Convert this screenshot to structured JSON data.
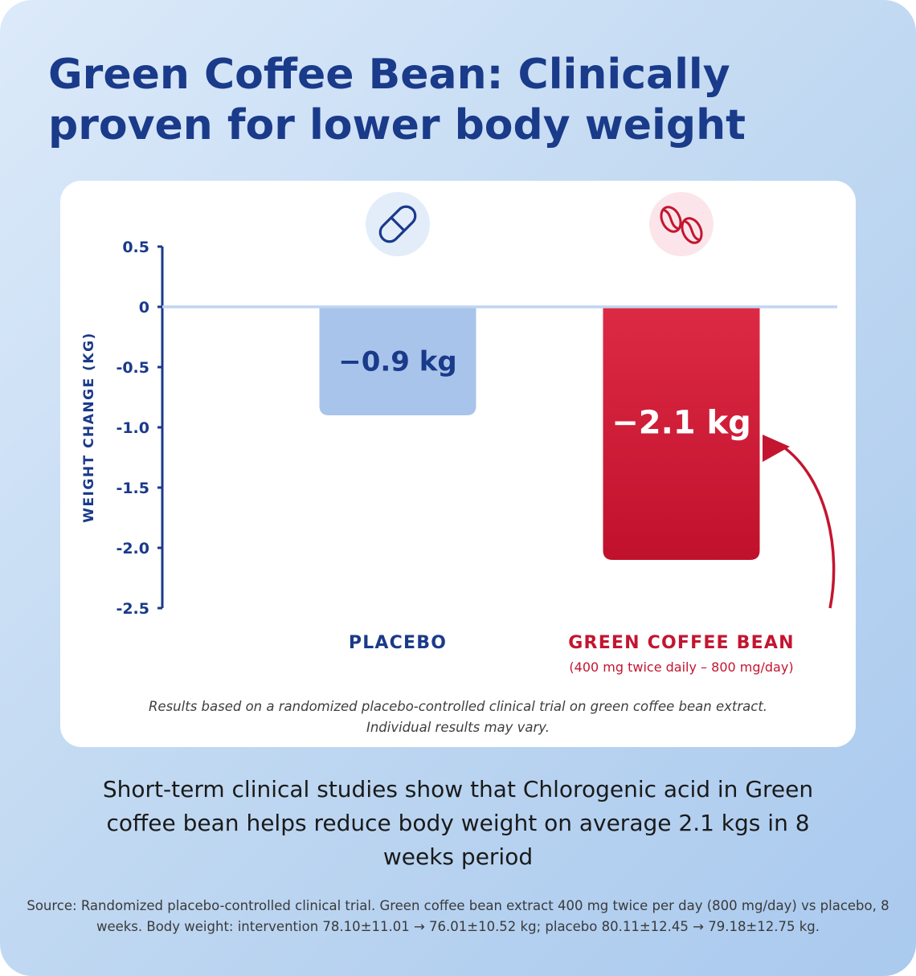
{
  "title": "Green Coffee Bean: Clinically proven for lower body weight",
  "colors": {
    "title": "#1a3a8a",
    "placebo_bar": "#a8c4ea",
    "placebo_icon_bg": "#e3edf9",
    "gcb_bar_top": "#dd2a44",
    "gcb_bar_bottom": "#c0112c",
    "gcb_icon_bg": "#fbe5ea",
    "zero_line": "#c0d5f0",
    "arrow": "#c41530"
  },
  "icons": {
    "placebo": "pill-icon",
    "gcb": "coffee-beans-icon"
  },
  "chart_data": {
    "type": "bar",
    "categories": [
      "PLACEBO",
      "GREEN COFFEE BEAN"
    ],
    "category_subtitles": [
      "",
      "(400 mg twice daily – 800 mg/day)"
    ],
    "values": [
      -0.9,
      -2.1
    ],
    "data_labels": [
      "−0.9 kg",
      "−2.1 kg"
    ],
    "ylabel": "WEIGHT CHANGE (KG)",
    "ylim": [
      -2.5,
      0.5
    ],
    "yticks": [
      0.5,
      0,
      -0.5,
      -1.0,
      -1.5,
      -2.0,
      -2.5
    ],
    "ytick_labels": [
      "0.5",
      "0",
      "-0.5",
      "-1.0",
      "-1.5",
      "-2.0",
      "-2.5"
    ],
    "grid": false,
    "annotation": "curved arrow pointing to Green Coffee Bean bar"
  },
  "footnote": {
    "line1": "Results based on a randomized placebo-controlled clinical trial on green coffee bean extract.",
    "line2": "Individual results may vary."
  },
  "summary": "Short-term clinical studies show that Chlorogenic acid in Green coffee bean helps reduce body weight on average 2.1 kgs in 8 weeks period",
  "source": "Source: Randomized placebo-controlled clinical trial. Green coffee bean extract 400 mg twice per day (800 mg/day) vs placebo, 8 weeks. Body weight: intervention 78.10±11.01 → 76.01±10.52 kg; placebo 80.11±12.45 → 79.18±12.75 kg."
}
